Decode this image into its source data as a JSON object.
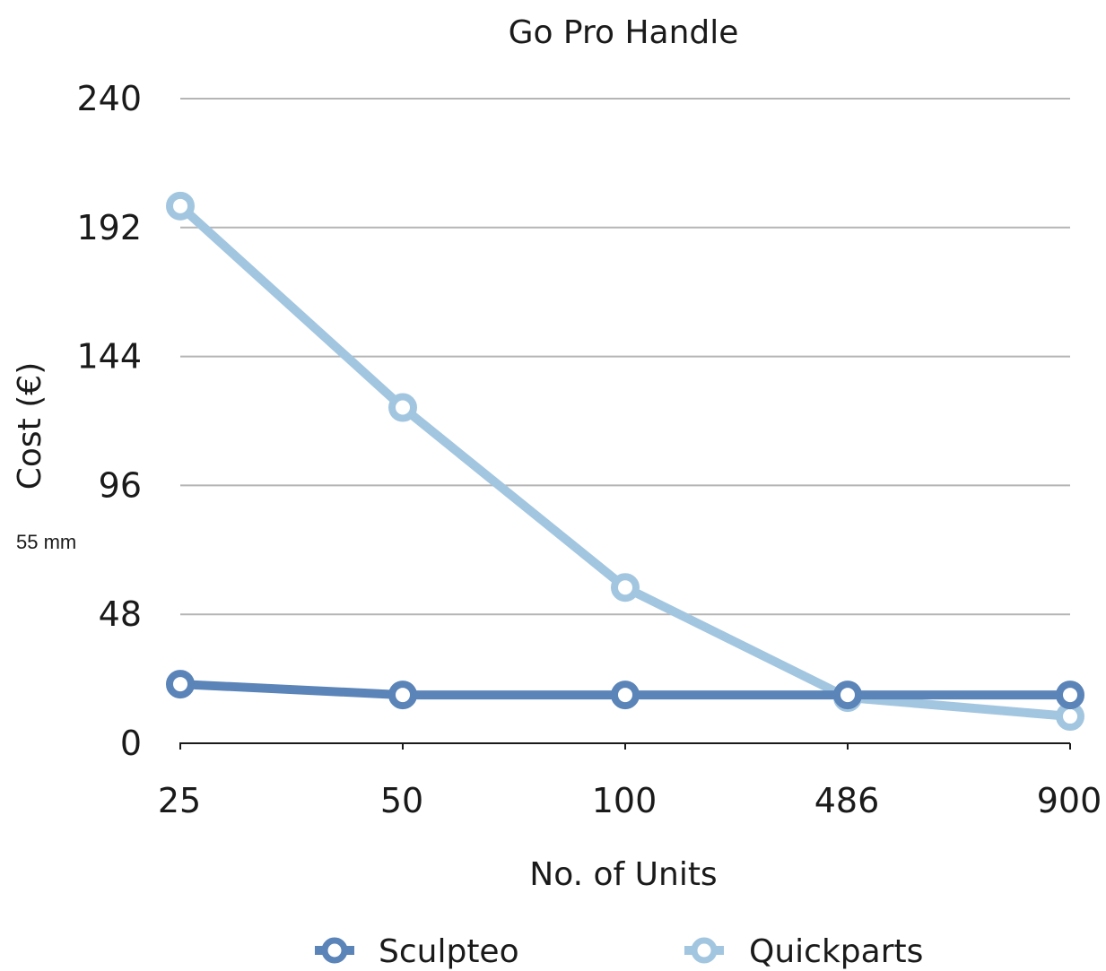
{
  "chart_data": {
    "type": "line",
    "title": "Go Pro Handle",
    "xlabel": "No. of Units",
    "ylabel": "Cost (€)",
    "annotation": "55 mm",
    "categories": [
      "25",
      "50",
      "100",
      "486",
      "900"
    ],
    "yticks": [
      "0",
      "48",
      "96",
      "144",
      "192",
      "240"
    ],
    "ylim": [
      0,
      240
    ],
    "grid": true,
    "legend_position": "bottom",
    "series": [
      {
        "name": "Sculpteo",
        "color": "#5b84b8",
        "values": [
          22,
          18,
          18,
          18,
          18
        ]
      },
      {
        "name": "Quickparts",
        "color": "#a3c6e0",
        "values": [
          200,
          125,
          58,
          17,
          10
        ]
      }
    ]
  }
}
